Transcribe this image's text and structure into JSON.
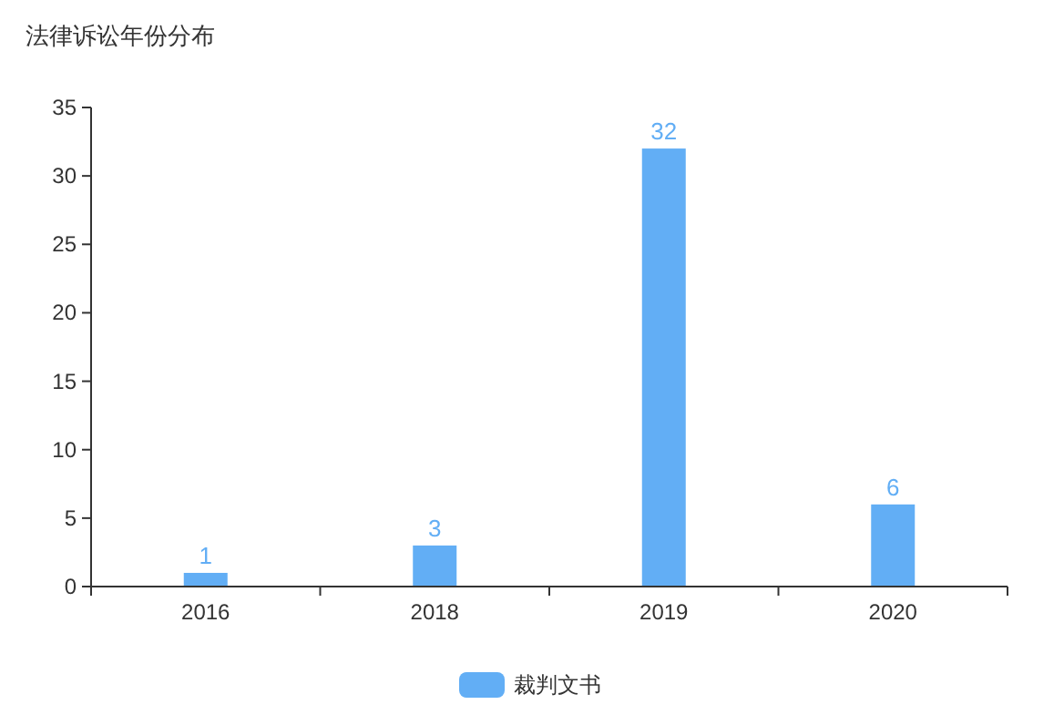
{
  "chart_data": {
    "type": "bar",
    "title": "法律诉讼年份分布",
    "categories": [
      "2016",
      "2018",
      "2019",
      "2020"
    ],
    "series": [
      {
        "name": "裁判文书",
        "color": "#62aef5",
        "values": [
          1,
          3,
          32,
          6
        ]
      }
    ],
    "ylim": [
      0,
      35
    ],
    "yticks": [
      0,
      5,
      10,
      15,
      20,
      25,
      30,
      35
    ],
    "grid": false,
    "legend": "bottom",
    "data_labels": true
  }
}
